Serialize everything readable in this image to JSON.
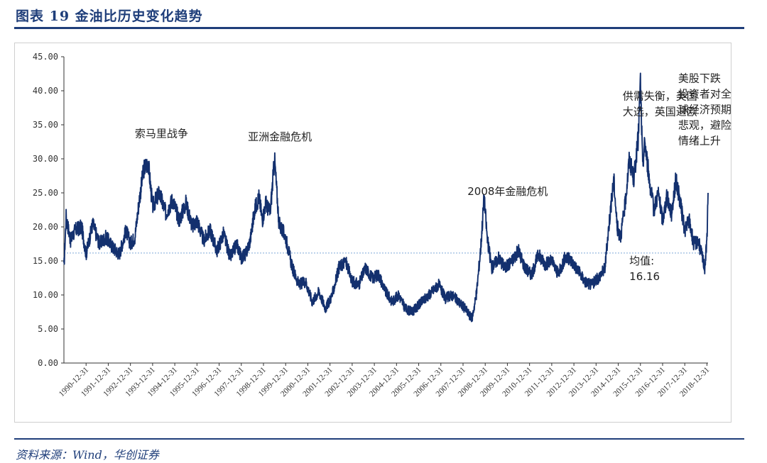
{
  "figure": {
    "title": "图表 19   金油比历史变化趋势",
    "source": "资料来源：Wind，华创证券"
  },
  "chart_data": {
    "type": "line",
    "title": "",
    "xlabel": "",
    "ylabel": "",
    "ylim": [
      0,
      45
    ],
    "yticks": [
      "0.00",
      "5.00",
      "10.00",
      "15.00",
      "20.00",
      "25.00",
      "30.00",
      "35.00",
      "40.00",
      "45.00"
    ],
    "xticks": [
      "1990-12-31",
      "1991-12-31",
      "1992-12-31",
      "1993-12-31",
      "1994-12-31",
      "1995-12-31",
      "1996-12-31",
      "1997-12-31",
      "1998-12-31",
      "1999-12-31",
      "2000-12-31",
      "2001-12-31",
      "2002-12-31",
      "2003-12-31",
      "2004-12-31",
      "2005-12-31",
      "2006-12-31",
      "2007-12-31",
      "2008-12-31",
      "2009-12-31",
      "2010-12-31",
      "2011-12-31",
      "2012-12-31",
      "2013-12-31",
      "2014-12-31",
      "2015-12-31",
      "2016-12-31",
      "2017-12-31",
      "2018-12-31"
    ],
    "grid": false,
    "line_color": "#13306e",
    "mean_color": "#7ea6d8",
    "mean_value": 16.16,
    "series": [
      {
        "name": "",
        "x": [
          1990.0,
          1990.1,
          1990.3,
          1990.5,
          1990.8,
          1991.0,
          1991.3,
          1991.6,
          1991.9,
          1992.2,
          1992.5,
          1992.8,
          1993.0,
          1993.2,
          1993.4,
          1993.6,
          1993.8,
          1994.0,
          1994.3,
          1994.6,
          1994.9,
          1995.2,
          1995.5,
          1995.8,
          1996.0,
          1996.3,
          1996.6,
          1996.9,
          1997.2,
          1997.5,
          1997.8,
          1998.0,
          1998.2,
          1998.4,
          1998.6,
          1998.8,
          1998.95,
          1999.1,
          1999.3,
          1999.5,
          1999.7,
          2000.0,
          2000.3,
          2000.6,
          2000.9,
          2001.2,
          2001.5,
          2001.8,
          2002.1,
          2002.4,
          2002.7,
          2003.0,
          2003.3,
          2003.6,
          2003.9,
          2004.2,
          2004.5,
          2004.8,
          2005.1,
          2005.4,
          2005.7,
          2006.0,
          2006.3,
          2006.6,
          2006.9,
          2007.2,
          2007.5,
          2007.8,
          2008.1,
          2008.4,
          2008.6,
          2008.8,
          2008.95,
          2009.1,
          2009.3,
          2009.6,
          2009.9,
          2010.2,
          2010.5,
          2010.8,
          2011.1,
          2011.4,
          2011.7,
          2012.0,
          2012.3,
          2012.6,
          2012.9,
          2013.2,
          2013.5,
          2013.8,
          2014.1,
          2014.4,
          2014.6,
          2014.8,
          2014.95,
          2015.1,
          2015.3,
          2015.5,
          2015.7,
          2015.9,
          2016.0,
          2016.1,
          2016.2,
          2016.4,
          2016.6,
          2016.8,
          2017.0,
          2017.2,
          2017.4,
          2017.6,
          2017.8,
          2018.0,
          2018.2,
          2018.4,
          2018.6,
          2018.8,
          2018.9,
          2019.0,
          2019.05
        ],
        "values": [
          14.0,
          21.5,
          18.0,
          19.5,
          20.0,
          16.0,
          20.5,
          17.5,
          18.5,
          17.0,
          16.0,
          19.5,
          17.5,
          18.5,
          24.0,
          28.5,
          29.5,
          23.0,
          25.0,
          22.0,
          24.0,
          21.0,
          23.5,
          20.0,
          21.0,
          18.0,
          19.5,
          16.5,
          19.0,
          15.5,
          17.5,
          15.5,
          16.0,
          18.0,
          22.5,
          24.5,
          21.0,
          23.5,
          22.0,
          30.0,
          20.5,
          18.5,
          14.0,
          11.5,
          12.0,
          9.0,
          10.5,
          8.0,
          10.0,
          14.0,
          15.0,
          12.0,
          11.5,
          14.0,
          12.5,
          13.0,
          10.5,
          9.0,
          10.0,
          8.0,
          7.5,
          8.5,
          9.5,
          10.5,
          11.5,
          9.5,
          10.0,
          9.0,
          8.0,
          6.5,
          10.0,
          17.0,
          24.5,
          18.0,
          14.0,
          15.5,
          14.0,
          15.0,
          16.5,
          14.0,
          13.0,
          16.0,
          14.5,
          15.0,
          13.0,
          15.5,
          15.0,
          13.5,
          12.0,
          11.5,
          12.5,
          14.0,
          21.0,
          27.0,
          20.0,
          18.5,
          23.0,
          30.0,
          27.0,
          33.0,
          41.5,
          29.0,
          32.5,
          27.0,
          22.5,
          25.0,
          21.0,
          24.5,
          22.0,
          27.0,
          23.5,
          19.5,
          21.0,
          17.5,
          18.0,
          15.5,
          14.0,
          18.0,
          25.0
        ]
      }
    ],
    "annotations": [
      {
        "id": "somalia",
        "lines": [
          "索马里战争"
        ],
        "x": 1993.2,
        "y": 33.2
      },
      {
        "id": "asia",
        "lines": [
          "亚洲金融危机"
        ],
        "x": 1998.3,
        "y": 32.7
      },
      {
        "id": "gfc",
        "lines": [
          "2008年金融危机"
        ],
        "x": 2008.2,
        "y": 24.7
      },
      {
        "id": "supply",
        "lines": [
          "供需失衡，美国",
          "大选，英国退欧"
        ],
        "x": 2015.2,
        "y": 38.7
      },
      {
        "id": "stocks",
        "lines": [
          "美股下跌",
          "投资者对全",
          "球经济预期",
          "悲观，避险",
          "情绪上升"
        ],
        "x": 2017.7,
        "y": 41.3
      },
      {
        "id": "mean",
        "lines": [
          "均值:",
          "16.16"
        ],
        "x": 2015.5,
        "y": 14.5
      }
    ]
  }
}
